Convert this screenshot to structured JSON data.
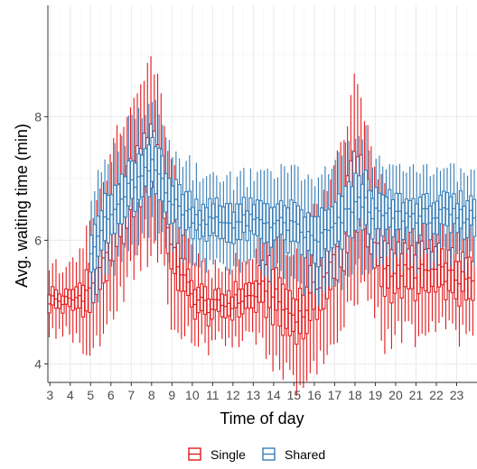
{
  "chart_data": {
    "type": "boxplot",
    "xlabel": "Time of day",
    "ylabel": "Avg. waiting time (min)",
    "x_ticks": [
      "3",
      "4",
      "5",
      "6",
      "7",
      "8",
      "9",
      "10",
      "11",
      "12",
      "13",
      "14",
      "15",
      "16",
      "17",
      "18",
      "19",
      "20",
      "21",
      "22",
      "23"
    ],
    "x_range": [
      2.9,
      24.0
    ],
    "y_ticks": [
      4,
      6,
      8
    ],
    "ylim": [
      3.7,
      9.8
    ],
    "legend": {
      "position": "bottom",
      "entries": [
        "Single",
        "Shared"
      ]
    },
    "grid": true,
    "colors": {
      "Single": "#e41a1c",
      "Shared": "#377eb8"
    },
    "series": [
      {
        "name": "Single",
        "anchors": {
          "x": [
            3.0,
            4.0,
            4.5,
            5.0,
            6.0,
            7.0,
            7.5,
            8.0,
            8.5,
            9.0,
            10.0,
            11.0,
            12.0,
            13.0,
            13.8,
            14.5,
            15.0,
            15.5,
            16.0,
            16.5,
            17.0,
            17.5,
            18.0,
            18.5,
            19.0,
            19.5,
            20.0,
            21.0,
            22.0,
            23.0,
            24.0
          ],
          "median": [
            5.05,
            5.0,
            5.1,
            5.2,
            6.0,
            6.8,
            7.1,
            7.4,
            7.1,
            5.9,
            5.1,
            4.9,
            5.0,
            5.1,
            5.3,
            4.9,
            4.8,
            4.8,
            5.2,
            5.4,
            5.7,
            6.2,
            6.9,
            6.6,
            6.0,
            5.6,
            5.5,
            5.5,
            5.5,
            5.4,
            5.3
          ],
          "iqr": [
            0.3,
            0.3,
            0.4,
            0.8,
            1.0,
            1.0,
            1.0,
            1.0,
            1.0,
            0.9,
            0.5,
            0.4,
            0.4,
            0.5,
            0.9,
            0.8,
            0.7,
            0.8,
            0.9,
            1.0,
            1.0,
            1.2,
            1.2,
            1.1,
            1.0,
            0.9,
            0.8,
            0.8,
            0.7,
            0.7,
            0.7
          ],
          "whisker": [
            0.45,
            0.5,
            0.55,
            0.75,
            0.95,
            1.0,
            1.05,
            1.15,
            1.0,
            0.9,
            0.55,
            0.45,
            0.45,
            0.5,
            0.8,
            0.8,
            0.75,
            0.8,
            0.8,
            0.95,
            1.0,
            1.1,
            1.2,
            1.1,
            1.0,
            0.85,
            0.75,
            0.7,
            0.7,
            0.6,
            0.6
          ]
        }
      },
      {
        "name": "Shared",
        "anchors": {
          "x": [
            5.0,
            5.5,
            6.0,
            7.0,
            7.5,
            8.0,
            8.5,
            9.0,
            10.0,
            11.0,
            12.0,
            13.0,
            14.0,
            15.0,
            16.0,
            17.0,
            18.0,
            18.5,
            19.0,
            20.0,
            21.0,
            22.0,
            23.0,
            24.0
          ],
          "median": [
            5.9,
            6.2,
            6.4,
            6.9,
            7.0,
            7.2,
            7.0,
            6.6,
            6.4,
            6.3,
            6.3,
            6.3,
            6.3,
            6.2,
            6.0,
            6.2,
            6.6,
            6.6,
            6.4,
            6.4,
            6.4,
            6.4,
            6.4,
            6.4
          ],
          "iqr": [
            0.7,
            0.7,
            0.8,
            0.8,
            0.8,
            0.8,
            0.8,
            0.7,
            0.6,
            0.6,
            0.6,
            0.6,
            0.7,
            0.7,
            0.8,
            0.8,
            0.9,
            0.9,
            0.7,
            0.6,
            0.6,
            0.6,
            0.6,
            0.6
          ],
          "whisker": [
            0.8,
            0.7,
            0.7,
            0.7,
            0.7,
            0.7,
            0.7,
            0.6,
            0.55,
            0.5,
            0.5,
            0.5,
            0.6,
            0.6,
            0.7,
            0.7,
            0.75,
            0.75,
            0.6,
            0.55,
            0.5,
            0.5,
            0.5,
            0.5
          ]
        }
      }
    ]
  }
}
